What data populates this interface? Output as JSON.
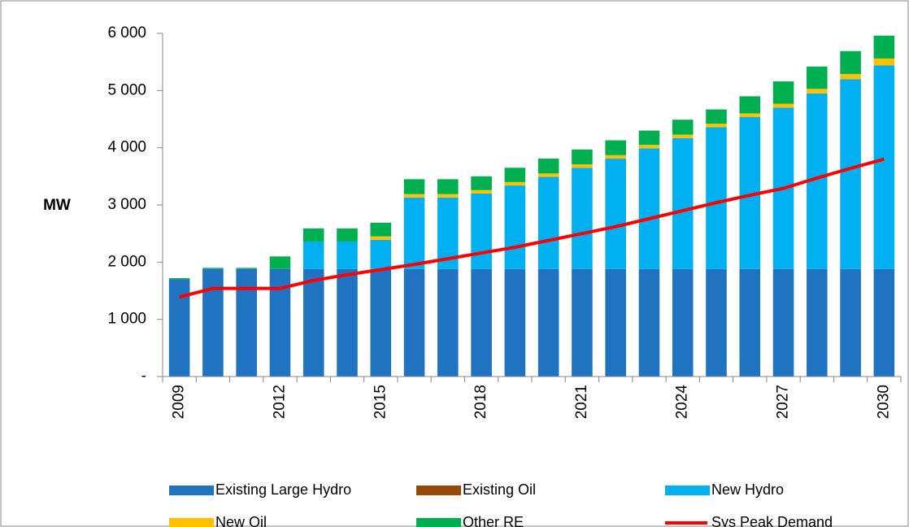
{
  "chart_data": {
    "type": "bar",
    "stacked": true,
    "y_label": "MW",
    "categories": [
      "2009",
      null,
      null,
      "2012",
      null,
      null,
      "2015",
      null,
      null,
      "2018",
      null,
      null,
      "2021",
      null,
      null,
      "2024",
      null,
      null,
      "2027",
      null,
      null,
      "2030"
    ],
    "ylim": [
      0,
      6000
    ],
    "yticks": [
      {
        "value": 0,
        "label": "-"
      },
      {
        "value": 1000,
        "label": "1 000"
      },
      {
        "value": 2000,
        "label": "2 000"
      },
      {
        "value": 3000,
        "label": "3 000"
      },
      {
        "value": 4000,
        "label": "4 000"
      },
      {
        "value": 5000,
        "label": "5 000"
      },
      {
        "value": 6000,
        "label": "6 000"
      }
    ],
    "grid": false,
    "legend": "bottom",
    "series": [
      {
        "name": "Existing Large Hydro",
        "type": "bar",
        "color": "#1f73c0",
        "values": [
          1700,
          1880,
          1880,
          1880,
          1880,
          1880,
          1880,
          1880,
          1880,
          1880,
          1880,
          1880,
          1880,
          1880,
          1880,
          1880,
          1880,
          1880,
          1880,
          1880,
          1880,
          1880
        ]
      },
      {
        "name": "Existing Oil",
        "type": "bar",
        "color": "#984807",
        "values": [
          0,
          0,
          0,
          0,
          0,
          0,
          0,
          0,
          0,
          0,
          0,
          0,
          0,
          0,
          0,
          0,
          0,
          0,
          0,
          0,
          0,
          0
        ]
      },
      {
        "name": "New Hydro",
        "type": "bar",
        "color": "#00b0f0",
        "values": [
          0,
          0,
          0,
          0,
          480,
          480,
          510,
          1250,
          1250,
          1320,
          1460,
          1610,
          1770,
          1930,
          2110,
          2290,
          2480,
          2660,
          2820,
          3070,
          3320,
          3560
        ]
      },
      {
        "name": "New Oil",
        "type": "bar",
        "color": "#ffc000",
        "values": [
          0,
          0,
          0,
          0,
          0,
          0,
          60,
          60,
          60,
          60,
          60,
          60,
          60,
          60,
          60,
          60,
          60,
          60,
          70,
          80,
          90,
          120
        ]
      },
      {
        "name": "Other RE",
        "type": "bar",
        "color": "#00b050",
        "values": [
          20,
          20,
          20,
          220,
          230,
          230,
          240,
          260,
          260,
          240,
          250,
          260,
          260,
          260,
          250,
          260,
          250,
          300,
          390,
          390,
          400,
          400
        ]
      },
      {
        "name": "Sys Peak Demand",
        "type": "line",
        "color": "#ff0000",
        "values": [
          1390,
          1540,
          1540,
          1540,
          1680,
          1780,
          1870,
          1960,
          2060,
          2160,
          2260,
          2380,
          2500,
          2620,
          2760,
          2900,
          3040,
          3170,
          3290,
          3470,
          3640,
          3800
        ]
      }
    ]
  }
}
